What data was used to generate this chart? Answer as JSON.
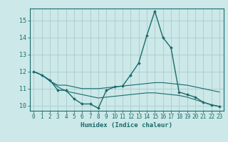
{
  "xlabel": "Humidex (Indice chaleur)",
  "bg_color": "#cce8e8",
  "line_color": "#1a6b6b",
  "grid_color": "#aacccc",
  "xlim": [
    -0.5,
    23.5
  ],
  "ylim": [
    9.7,
    15.7
  ],
  "xticks": [
    0,
    1,
    2,
    3,
    4,
    5,
    6,
    7,
    8,
    9,
    10,
    11,
    12,
    13,
    14,
    15,
    16,
    17,
    18,
    19,
    20,
    21,
    22,
    23
  ],
  "yticks": [
    10,
    11,
    12,
    13,
    14,
    15
  ],
  "line1_x": [
    0,
    1,
    2,
    3,
    4,
    5,
    6,
    7,
    8,
    9,
    10,
    11,
    12,
    13,
    14,
    15,
    16,
    17,
    18,
    19,
    20,
    21,
    22,
    23
  ],
  "line1_y": [
    12.0,
    11.8,
    11.5,
    10.9,
    10.9,
    10.4,
    10.1,
    10.1,
    9.85,
    10.9,
    11.1,
    11.15,
    11.8,
    12.5,
    14.1,
    15.55,
    14.0,
    13.4,
    10.8,
    10.65,
    10.5,
    10.2,
    10.05,
    9.95
  ],
  "line2_x": [
    0,
    1,
    2,
    3,
    4,
    5,
    6,
    7,
    8,
    9,
    10,
    11,
    12,
    13,
    14,
    15,
    16,
    17,
    18,
    19,
    20,
    21,
    22,
    23
  ],
  "line2_y": [
    12.0,
    11.8,
    11.45,
    11.2,
    11.2,
    11.1,
    11.0,
    11.0,
    11.0,
    11.05,
    11.1,
    11.15,
    11.2,
    11.25,
    11.3,
    11.35,
    11.35,
    11.3,
    11.25,
    11.2,
    11.1,
    11.0,
    10.9,
    10.8
  ],
  "line3_x": [
    0,
    1,
    2,
    3,
    4,
    5,
    6,
    7,
    8,
    9,
    10,
    11,
    12,
    13,
    14,
    15,
    16,
    17,
    18,
    19,
    20,
    21,
    22,
    23
  ],
  "line3_y": [
    12.0,
    11.8,
    11.45,
    11.1,
    10.85,
    10.75,
    10.65,
    10.55,
    10.45,
    10.5,
    10.55,
    10.6,
    10.65,
    10.7,
    10.75,
    10.75,
    10.7,
    10.65,
    10.6,
    10.5,
    10.35,
    10.2,
    10.05,
    9.95
  ],
  "tick_fontsize": 5.5,
  "xlabel_fontsize": 6.5
}
